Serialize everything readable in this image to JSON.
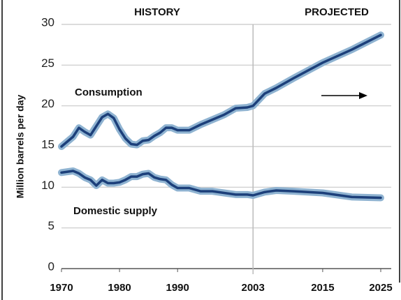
{
  "chart_data": {
    "type": "line",
    "ylabel": "Million barrels per day",
    "annotations": {
      "history": "HISTORY",
      "projected": "PROJECTED"
    },
    "x": [
      1970,
      1972,
      1973,
      1974,
      1975,
      1976,
      1977,
      1978,
      1979,
      1980,
      1981,
      1982,
      1983,
      1984,
      1985,
      1986,
      1987,
      1988,
      1989,
      1990,
      1992,
      1994,
      1996,
      1998,
      2000,
      2002,
      2003,
      2005,
      2007,
      2010,
      2015,
      2020,
      2025
    ],
    "series": [
      {
        "name": "Consumption",
        "color": "#1c3f7a",
        "values": [
          15,
          16.2,
          17.3,
          16.8,
          16.4,
          17.5,
          18.6,
          19,
          18.5,
          17.1,
          16,
          15.3,
          15.2,
          15.7,
          15.8,
          16.3,
          16.7,
          17.3,
          17.3,
          17,
          17,
          17.7,
          18.3,
          18.9,
          19.7,
          19.8,
          20,
          21.5,
          22.2,
          23.4,
          25.3,
          26.9,
          28.7
        ]
      },
      {
        "name": "Domestic supply",
        "color": "#1c3f7a",
        "values": [
          11.8,
          12,
          11.7,
          11.2,
          10.9,
          10.2,
          10.9,
          10.5,
          10.5,
          10.6,
          10.9,
          11.3,
          11.3,
          11.6,
          11.7,
          11.2,
          11,
          10.9,
          10.3,
          9.9,
          9.9,
          9.5,
          9.5,
          9.3,
          9.1,
          9.1,
          9,
          9.4,
          9.6,
          9.5,
          9.3,
          8.8,
          8.7
        ]
      }
    ],
    "halo_color": "#8fb3d1",
    "xlim": [
      1970,
      2025
    ],
    "xticks": [
      1970,
      1980,
      1990,
      2003,
      2015,
      2025
    ],
    "ylim": [
      0,
      30
    ],
    "yticks": [
      0,
      5,
      10,
      15,
      20,
      25,
      30
    ],
    "grid": true
  }
}
